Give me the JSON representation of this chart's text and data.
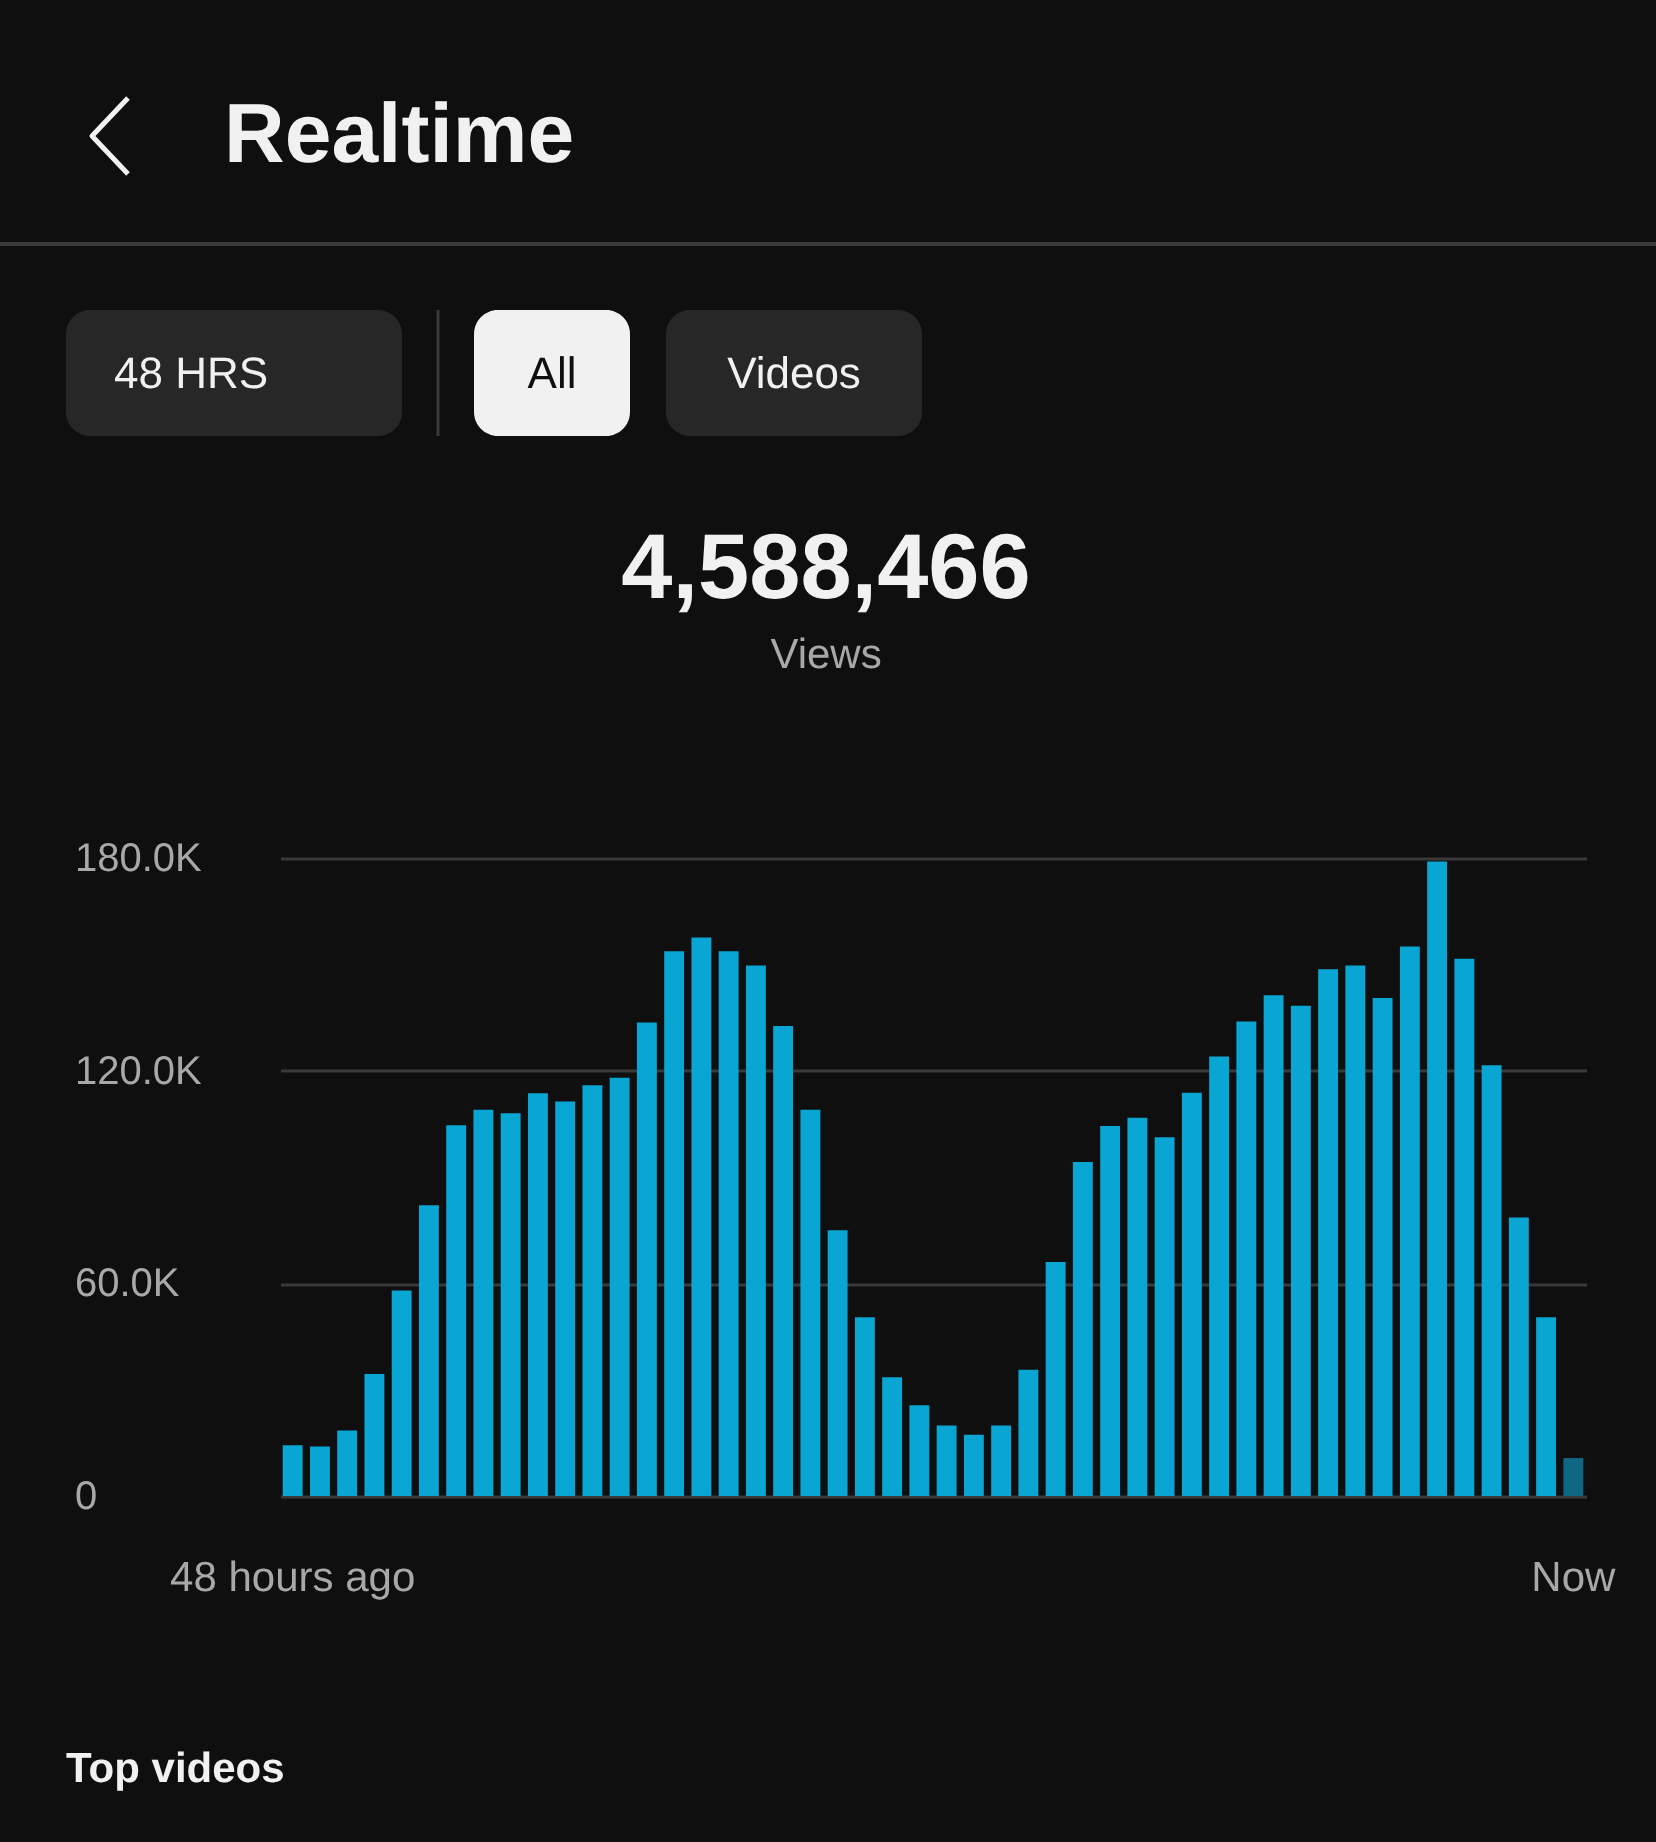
{
  "chart_data": {
    "type": "bar",
    "title": "Realtime",
    "annotations": [
      "48 HRS",
      "All",
      "Videos",
      "4,588,466",
      "Views",
      "Top videos"
    ],
    "categories": [
      "48 hours ago",
      null,
      null,
      null,
      null,
      null,
      null,
      null,
      null,
      null,
      null,
      null,
      null,
      null,
      null,
      null,
      null,
      null,
      null,
      null,
      null,
      null,
      null,
      null,
      null,
      null,
      null,
      null,
      null,
      null,
      null,
      null,
      null,
      null,
      null,
      null,
      null,
      null,
      null,
      null,
      null,
      null,
      null,
      null,
      null,
      null,
      null,
      "Now"
    ],
    "values": [
      14300,
      14000,
      18500,
      34400,
      58000,
      82000,
      104600,
      109000,
      108000,
      113600,
      111300,
      115900,
      118000,
      133600,
      153700,
      157600,
      153700,
      149700,
      132600,
      109000,
      75000,
      50400,
      33500,
      25600,
      19900,
      17300,
      19900,
      35600,
      66000,
      94200,
      104400,
      106700,
      101200,
      113800,
      124000,
      133900,
      141300,
      138300,
      148600,
      149700,
      140500,
      155000,
      179000,
      151600,
      121500,
      78600,
      50400,
      10700
    ],
    "colors": [
      "#0aa6d3",
      "#0aa6d3",
      "#0aa6d3",
      "#0aa6d3",
      "#0aa6d3",
      "#0aa6d3",
      "#0aa6d3",
      "#0aa6d3",
      "#0aa6d3",
      "#0aa6d3",
      "#0aa6d3",
      "#0aa6d3",
      "#0aa6d3",
      "#0aa6d3",
      "#0aa6d3",
      "#0aa6d3",
      "#0aa6d3",
      "#0aa6d3",
      "#0aa6d3",
      "#0aa6d3",
      "#0aa6d3",
      "#0aa6d3",
      "#0aa6d3",
      "#0aa6d3",
      "#0aa6d3",
      "#0aa6d3",
      "#0aa6d3",
      "#0aa6d3",
      "#0aa6d3",
      "#0aa6d3",
      "#0aa6d3",
      "#0aa6d3",
      "#0aa6d3",
      "#0aa6d3",
      "#0aa6d3",
      "#0aa6d3",
      "#0aa6d3",
      "#0aa6d3",
      "#0aa6d3",
      "#0aa6d3",
      "#0aa6d3",
      "#0aa6d3",
      "#0aa6d3",
      "#0aa6d3",
      "#0aa6d3",
      "#0aa6d3",
      "#0aa6d3",
      "#0e6783"
    ],
    "ylim": [
      0,
      180000
    ],
    "yticks": [
      0,
      {
        "value": 60000,
        "label": "60.0K"
      },
      {
        "value": 120000,
        "label": "120.0K"
      },
      {
        "value": 180000,
        "label": "180.0K"
      }
    ],
    "grid": "y"
  }
}
